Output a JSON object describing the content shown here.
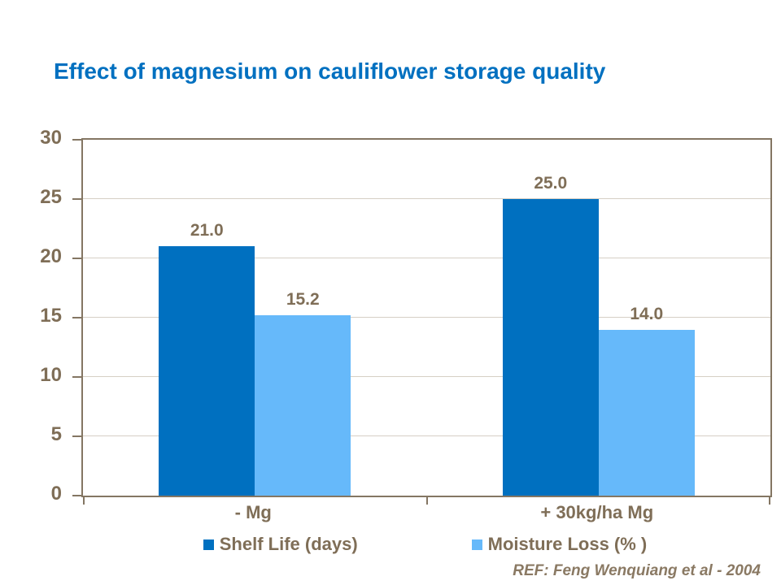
{
  "slide": {
    "title": "Effect of magnesium on cauliflower storage quality",
    "reference": "REF: Feng Wenquiang et al - 2004"
  },
  "colors": {
    "title_text": "#0070C0",
    "shelf_life_bar": "#0070C0",
    "moisture_loss_bar": "#66B9FA",
    "axis_text": "#7F6E57",
    "axis_line": "#847663",
    "gridline": "#D6CFC5",
    "reference_text": "#8A7963",
    "background": "#FFFFFF"
  },
  "chart_data": {
    "type": "bar",
    "title": "Effect of magnesium on cauliflower storage quality",
    "categories": [
      "- Mg",
      "+ 30kg/ha Mg"
    ],
    "series": [
      {
        "name": "Shelf Life (days)",
        "color": "#0070C0",
        "values": [
          21.0,
          25.0
        ],
        "labels": [
          "21.0",
          "25.0"
        ]
      },
      {
        "name": "Moisture Loss (% )",
        "color": "#66B9FA",
        "values": [
          15.2,
          14.0
        ],
        "labels": [
          "15.2",
          "14.0"
        ]
      }
    ],
    "xlabel": "",
    "ylabel": "",
    "ylim": [
      0,
      30
    ],
    "yticks": [
      0,
      5,
      10,
      15,
      20,
      25,
      30
    ],
    "grid": true,
    "legend_position": "bottom",
    "data_labels_shown": true
  }
}
